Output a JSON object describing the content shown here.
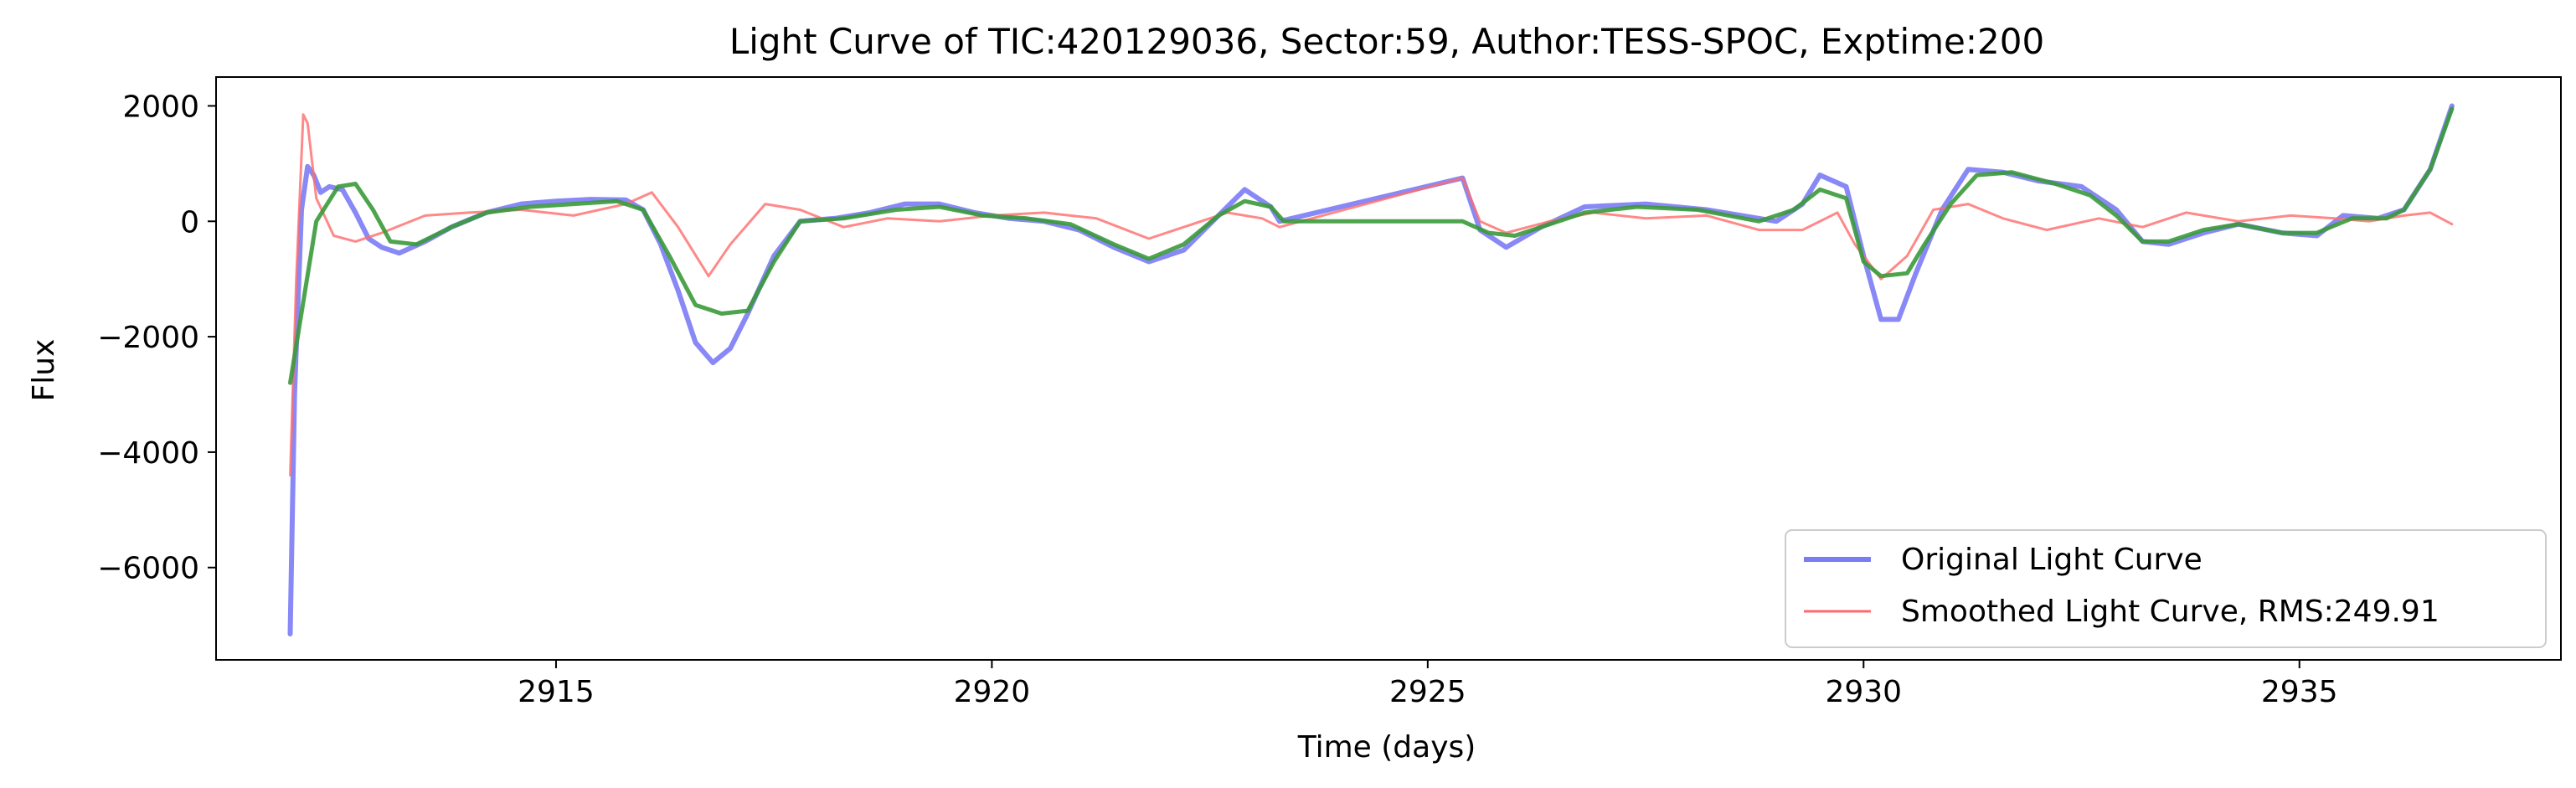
{
  "chart_data": {
    "type": "line",
    "title": "Light Curve of TIC:420129036, Sector:59, Author:TESS-SPOC, Exptime:200",
    "xlabel": "Time (days)",
    "ylabel": "Flux",
    "xlim": [
      2911.1,
      2938.0
    ],
    "ylim": [
      -7600,
      2500
    ],
    "xticks": [
      2915,
      2920,
      2925,
      2930,
      2935
    ],
    "yticks": [
      -6000,
      -4000,
      -2000,
      0,
      2000
    ],
    "grid": false,
    "legend_position": "lower right",
    "series": [
      {
        "name": "Original Light Curve",
        "color": "#7b7bf5",
        "points": [
          [
            2911.95,
            -7150
          ],
          [
            2912.0,
            -3000
          ],
          [
            2912.08,
            200
          ],
          [
            2912.15,
            950
          ],
          [
            2912.22,
            800
          ],
          [
            2912.3,
            500
          ],
          [
            2912.4,
            600
          ],
          [
            2912.55,
            550
          ],
          [
            2912.7,
            150
          ],
          [
            2912.85,
            -300
          ],
          [
            2913.0,
            -450
          ],
          [
            2913.2,
            -550
          ],
          [
            2913.5,
            -350
          ],
          [
            2913.8,
            -100
          ],
          [
            2914.2,
            150
          ],
          [
            2914.6,
            300
          ],
          [
            2915.0,
            350
          ],
          [
            2915.4,
            380
          ],
          [
            2915.8,
            370
          ],
          [
            2916.0,
            200
          ],
          [
            2916.2,
            -400
          ],
          [
            2916.4,
            -1200
          ],
          [
            2916.6,
            -2100
          ],
          [
            2916.8,
            -2450
          ],
          [
            2917.0,
            -2200
          ],
          [
            2917.2,
            -1600
          ],
          [
            2917.5,
            -600
          ],
          [
            2917.8,
            0
          ],
          [
            2918.2,
            50
          ],
          [
            2918.6,
            150
          ],
          [
            2919.0,
            300
          ],
          [
            2919.4,
            300
          ],
          [
            2919.8,
            150
          ],
          [
            2920.2,
            50
          ],
          [
            2920.6,
            0
          ],
          [
            2921.0,
            -150
          ],
          [
            2921.4,
            -450
          ],
          [
            2921.8,
            -700
          ],
          [
            2922.2,
            -500
          ],
          [
            2922.6,
            100
          ],
          [
            2922.9,
            550
          ],
          [
            2923.2,
            250
          ],
          [
            2923.3,
            0
          ],
          [
            2925.4,
            750
          ],
          [
            2925.6,
            -150
          ],
          [
            2925.9,
            -450
          ],
          [
            2926.3,
            -100
          ],
          [
            2926.8,
            250
          ],
          [
            2927.5,
            300
          ],
          [
            2928.2,
            200
          ],
          [
            2929.0,
            0
          ],
          [
            2929.3,
            300
          ],
          [
            2929.5,
            800
          ],
          [
            2929.8,
            600
          ],
          [
            2930.0,
            -600
          ],
          [
            2930.2,
            -1700
          ],
          [
            2930.4,
            -1700
          ],
          [
            2930.6,
            -900
          ],
          [
            2930.9,
            200
          ],
          [
            2931.2,
            900
          ],
          [
            2931.6,
            850
          ],
          [
            2932.0,
            700
          ],
          [
            2932.5,
            600
          ],
          [
            2932.9,
            200
          ],
          [
            2933.2,
            -350
          ],
          [
            2933.5,
            -400
          ],
          [
            2933.9,
            -200
          ],
          [
            2934.3,
            -50
          ],
          [
            2934.8,
            -200
          ],
          [
            2935.2,
            -250
          ],
          [
            2935.5,
            100
          ],
          [
            2935.9,
            50
          ],
          [
            2936.2,
            200
          ],
          [
            2936.5,
            900
          ],
          [
            2936.75,
            2000
          ]
        ]
      },
      {
        "name": "Smoothed Light Curve, RMS:249.91",
        "color": "#ff6b6b",
        "points": [
          [
            2911.95,
            -4400
          ],
          [
            2912.02,
            -1000
          ],
          [
            2912.1,
            1850
          ],
          [
            2912.15,
            1700
          ],
          [
            2912.25,
            400
          ],
          [
            2912.45,
            -250
          ],
          [
            2912.7,
            -350
          ],
          [
            2913.0,
            -200
          ],
          [
            2913.5,
            100
          ],
          [
            2914.0,
            150
          ],
          [
            2914.6,
            200
          ],
          [
            2915.2,
            100
          ],
          [
            2915.8,
            300
          ],
          [
            2916.1,
            500
          ],
          [
            2916.4,
            -100
          ],
          [
            2916.75,
            -950
          ],
          [
            2917.0,
            -400
          ],
          [
            2917.4,
            300
          ],
          [
            2917.8,
            200
          ],
          [
            2918.3,
            -100
          ],
          [
            2918.8,
            50
          ],
          [
            2919.4,
            0
          ],
          [
            2920.0,
            100
          ],
          [
            2920.6,
            150
          ],
          [
            2921.2,
            50
          ],
          [
            2921.8,
            -300
          ],
          [
            2922.2,
            -100
          ],
          [
            2922.7,
            150
          ],
          [
            2923.1,
            50
          ],
          [
            2923.3,
            -100
          ],
          [
            2925.4,
            750
          ],
          [
            2925.6,
            0
          ],
          [
            2925.9,
            -200
          ],
          [
            2926.4,
            0
          ],
          [
            2926.9,
            150
          ],
          [
            2927.5,
            50
          ],
          [
            2928.2,
            100
          ],
          [
            2928.8,
            -150
          ],
          [
            2929.3,
            -150
          ],
          [
            2929.7,
            150
          ],
          [
            2929.9,
            -400
          ],
          [
            2930.2,
            -1000
          ],
          [
            2930.5,
            -600
          ],
          [
            2930.8,
            200
          ],
          [
            2931.2,
            300
          ],
          [
            2931.6,
            50
          ],
          [
            2932.1,
            -150
          ],
          [
            2932.7,
            50
          ],
          [
            2933.2,
            -100
          ],
          [
            2933.7,
            150
          ],
          [
            2934.3,
            0
          ],
          [
            2934.9,
            100
          ],
          [
            2935.4,
            50
          ],
          [
            2935.8,
            0
          ],
          [
            2936.2,
            100
          ],
          [
            2936.5,
            150
          ],
          [
            2936.75,
            -50
          ]
        ]
      },
      {
        "name": "",
        "color": "#3a9a3a",
        "points": [
          [
            2911.95,
            -2800
          ],
          [
            2912.1,
            -1400
          ],
          [
            2912.25,
            0
          ],
          [
            2912.5,
            600
          ],
          [
            2912.7,
            650
          ],
          [
            2912.9,
            200
          ],
          [
            2913.1,
            -350
          ],
          [
            2913.4,
            -400
          ],
          [
            2913.8,
            -100
          ],
          [
            2914.2,
            150
          ],
          [
            2914.7,
            250
          ],
          [
            2915.2,
            300
          ],
          [
            2915.7,
            350
          ],
          [
            2916.0,
            200
          ],
          [
            2916.3,
            -600
          ],
          [
            2916.6,
            -1450
          ],
          [
            2916.9,
            -1600
          ],
          [
            2917.2,
            -1550
          ],
          [
            2917.5,
            -700
          ],
          [
            2917.8,
            0
          ],
          [
            2918.3,
            50
          ],
          [
            2918.9,
            200
          ],
          [
            2919.4,
            250
          ],
          [
            2919.9,
            100
          ],
          [
            2920.4,
            50
          ],
          [
            2920.9,
            -50
          ],
          [
            2921.4,
            -400
          ],
          [
            2921.8,
            -650
          ],
          [
            2922.2,
            -400
          ],
          [
            2922.6,
            100
          ],
          [
            2922.9,
            350
          ],
          [
            2923.2,
            250
          ],
          [
            2923.35,
            0
          ],
          [
            2925.4,
            0
          ],
          [
            2925.7,
            -200
          ],
          [
            2926.0,
            -250
          ],
          [
            2926.4,
            -50
          ],
          [
            2926.8,
            150
          ],
          [
            2927.4,
            250
          ],
          [
            2928.1,
            200
          ],
          [
            2928.8,
            0
          ],
          [
            2929.2,
            200
          ],
          [
            2929.5,
            550
          ],
          [
            2929.8,
            400
          ],
          [
            2930.0,
            -700
          ],
          [
            2930.2,
            -950
          ],
          [
            2930.5,
            -900
          ],
          [
            2930.7,
            -400
          ],
          [
            2931.0,
            300
          ],
          [
            2931.3,
            800
          ],
          [
            2931.7,
            850
          ],
          [
            2932.2,
            650
          ],
          [
            2932.6,
            450
          ],
          [
            2932.9,
            100
          ],
          [
            2933.2,
            -350
          ],
          [
            2933.5,
            -350
          ],
          [
            2933.9,
            -150
          ],
          [
            2934.3,
            -50
          ],
          [
            2934.8,
            -200
          ],
          [
            2935.2,
            -200
          ],
          [
            2935.6,
            50
          ],
          [
            2936.0,
            50
          ],
          [
            2936.2,
            200
          ],
          [
            2936.5,
            900
          ],
          [
            2936.75,
            1950
          ]
        ]
      }
    ]
  }
}
